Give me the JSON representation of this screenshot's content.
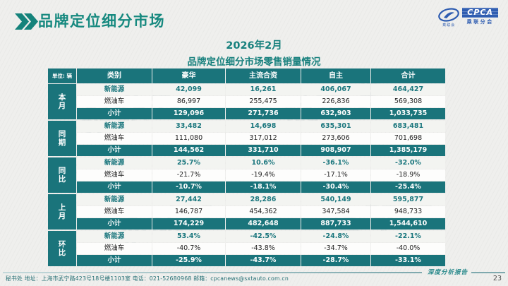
{
  "header": {
    "title": "品牌定位细分市场",
    "logo": {
      "text": "CPCA",
      "subtext": "乘联分会",
      "emblem_caption": "乘联会"
    }
  },
  "subtitle": {
    "line1": "2026年2月",
    "line2": "品牌定位细分市场零售销量情况"
  },
  "table": {
    "unit_label": "单位: 辆",
    "columns": [
      "类别",
      "豪华",
      "主流合资",
      "自主",
      "合计"
    ],
    "sections": [
      {
        "group": "本月",
        "rows": [
          {
            "type": "nev",
            "label": "新能源",
            "values": [
              "42,099",
              "16,261",
              "406,067",
              "464,427"
            ]
          },
          {
            "type": "fuel",
            "label": "燃油车",
            "values": [
              "86,997",
              "255,475",
              "226,836",
              "569,308"
            ]
          },
          {
            "type": "subtotal",
            "label": "小计",
            "values": [
              "129,096",
              "271,736",
              "632,903",
              "1,033,735"
            ]
          }
        ]
      },
      {
        "group": "同期",
        "rows": [
          {
            "type": "nev",
            "label": "新能源",
            "values": [
              "33,482",
              "14,698",
              "635,301",
              "683,481"
            ]
          },
          {
            "type": "fuel",
            "label": "燃油车",
            "values": [
              "111,080",
              "317,012",
              "273,606",
              "701,698"
            ]
          },
          {
            "type": "subtotal",
            "label": "小计",
            "values": [
              "144,562",
              "331,710",
              "908,907",
              "1,385,179"
            ]
          }
        ]
      },
      {
        "group": "同比",
        "rows": [
          {
            "type": "nev",
            "label": "新能源",
            "values": [
              "25.7%",
              "10.6%",
              "-36.1%",
              "-32.0%"
            ]
          },
          {
            "type": "fuel",
            "label": "燃油车",
            "values": [
              "-21.7%",
              "-19.4%",
              "-17.1%",
              "-18.9%"
            ]
          },
          {
            "type": "subtotal",
            "label": "小计",
            "values": [
              "-10.7%",
              "-18.1%",
              "-30.4%",
              "-25.4%"
            ]
          }
        ]
      },
      {
        "group": "上月",
        "rows": [
          {
            "type": "nev",
            "label": "新能源",
            "values": [
              "27,442",
              "28,286",
              "540,149",
              "595,877"
            ]
          },
          {
            "type": "fuel",
            "label": "燃油车",
            "values": [
              "146,787",
              "454,362",
              "347,584",
              "948,733"
            ]
          },
          {
            "type": "subtotal",
            "label": "小计",
            "values": [
              "174,229",
              "482,648",
              "887,733",
              "1,544,610"
            ]
          }
        ]
      },
      {
        "group": "环比",
        "rows": [
          {
            "type": "nev",
            "label": "新能源",
            "values": [
              "53.4%",
              "-42.5%",
              "-24.8%",
              "-22.1%"
            ]
          },
          {
            "type": "fuel",
            "label": "燃油车",
            "values": [
              "-40.7%",
              "-43.8%",
              "-34.7%",
              "-40.0%"
            ]
          },
          {
            "type": "subtotal",
            "label": "小计",
            "values": [
              "-25.9%",
              "-43.7%",
              "-28.7%",
              "-33.1%"
            ]
          }
        ]
      }
    ]
  },
  "footer": {
    "left_text": "秘书处   地址：上海市武宁路423号18号楼1103室   电话：021-52680968   邮箱：cpcanews@sxtauto.com.cn",
    "report_label": "深度分析报告",
    "page_number": "23"
  },
  "watermark": "乘联会",
  "colors": {
    "teal": "#1a747b",
    "title_teal": "#16897f",
    "logo_blue": "#2f5db1"
  }
}
